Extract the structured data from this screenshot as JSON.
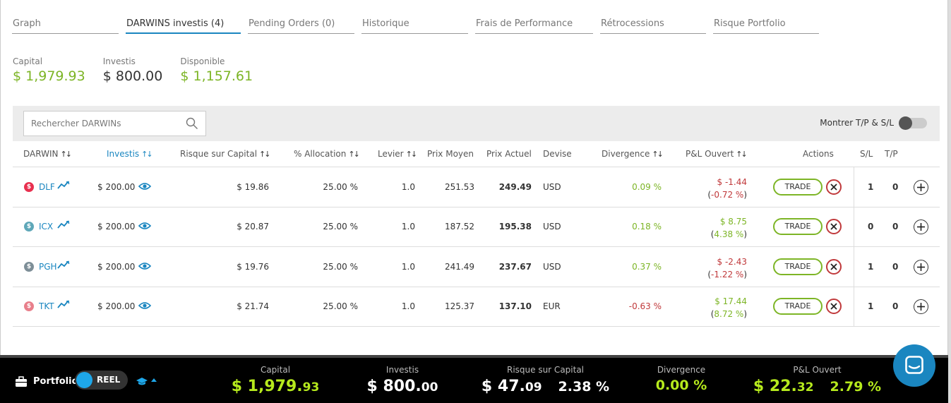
{
  "tabs": [
    {
      "label": "Graph",
      "active": false
    },
    {
      "label": "DARWINS investis (4)",
      "active": true
    },
    {
      "label": "Pending Orders (0)",
      "active": false
    },
    {
      "label": "Historique",
      "active": false
    },
    {
      "label": "Frais de Performance",
      "active": false
    },
    {
      "label": "Rétrocessions",
      "active": false
    },
    {
      "label": "Risque Portfolio",
      "active": false
    }
  ],
  "stats": {
    "capital": {
      "label": "Capital",
      "value": "$ 1,979.93"
    },
    "investis": {
      "label": "Investis",
      "value": "$ 800.00"
    },
    "disponible": {
      "label": "Disponible",
      "value": "$ 1,157.61"
    }
  },
  "search": {
    "placeholder": "Rechercher DARWINs"
  },
  "toggle": {
    "label": "Montrer T/P & S/L",
    "on": false
  },
  "columns": {
    "darwin": "DARWIN",
    "investis": "Investis",
    "risque": "Risque sur Capital",
    "allocation": "% Allocation",
    "levier": "Levier",
    "prix_moyen": "Prix Moyen",
    "prix_actuel": "Prix Actuel",
    "devise": "Devise",
    "divergence": "Divergence",
    "pnl": "P&L Ouvert",
    "actions": "Actions",
    "sl": "S/L",
    "tp": "T/P",
    "sort_glyph": "↑↓"
  },
  "rows": [
    {
      "symbol": "DLF",
      "coin_color": "#e8304f",
      "investis": "$ 200.00",
      "risque": "$ 19.86",
      "allocation": "25.00 %",
      "levier": "1.0",
      "prix_moyen": "251.53",
      "prix_actuel": "249.49",
      "devise": "USD",
      "divergence": "0.09 %",
      "divergence_positive": true,
      "pnl": "$ -1.44",
      "pnl_pct": "(-0.72 %)",
      "pnl_positive": false,
      "trade": "TRADE",
      "sl": "1",
      "tp": "0"
    },
    {
      "symbol": "ICX",
      "coin_color": "#5ea7b8",
      "investis": "$ 200.00",
      "risque": "$ 20.87",
      "allocation": "25.00 %",
      "levier": "1.0",
      "prix_moyen": "187.52",
      "prix_actuel": "195.38",
      "devise": "USD",
      "divergence": "0.18 %",
      "divergence_positive": true,
      "pnl": "$ 8.75",
      "pnl_pct": "(4.38 %)",
      "pnl_positive": true,
      "trade": "TRADE",
      "sl": "0",
      "tp": "0"
    },
    {
      "symbol": "PGH",
      "coin_color": "#7d8e97",
      "investis": "$ 200.00",
      "risque": "$ 19.76",
      "allocation": "25.00 %",
      "levier": "1.0",
      "prix_moyen": "241.49",
      "prix_actuel": "237.67",
      "devise": "USD",
      "divergence": "0.37 %",
      "divergence_positive": true,
      "pnl": "$ -2.43",
      "pnl_pct": "(-1.22 %)",
      "pnl_positive": false,
      "trade": "TRADE",
      "sl": "1",
      "tp": "0"
    },
    {
      "symbol": "TKT",
      "coin_color": "#e87f8b",
      "investis": "$ 200.00",
      "risque": "$ 21.74",
      "allocation": "25.00 %",
      "levier": "1.0",
      "prix_moyen": "125.37",
      "prix_actuel": "137.10",
      "devise": "EUR",
      "divergence": "-0.63 %",
      "divergence_positive": false,
      "pnl": "$ 17.44",
      "pnl_pct": "(8.72 %)",
      "pnl_positive": true,
      "trade": "TRADE",
      "sl": "1",
      "tp": "0"
    }
  ],
  "footer": {
    "portfolio_label": "Portfolio",
    "mode_label": "REEL",
    "capital": {
      "label": "Capital",
      "main": "$ 1,979.",
      "cents": "93"
    },
    "investis": {
      "label": "Investis",
      "main": "$ 800.",
      "cents": "00"
    },
    "risque": {
      "label": "Risque sur Capital",
      "main": "$ 47.",
      "cents": "09",
      "pct": "2.38 %"
    },
    "divergence": {
      "label": "Divergence",
      "value": "0.00 %"
    },
    "pnl": {
      "label": "P&L Ouvert",
      "main": "$ 22.",
      "cents": "32",
      "pct": "2.79 %"
    }
  },
  "colors": {
    "accent": "#1a86c0",
    "positive": "#7db526",
    "negative": "#c0393b",
    "footer_positive": "#b6ea1d"
  },
  "icons": {
    "search": "search-icon",
    "trend": "trend-chart-icon",
    "eye": "eye-icon",
    "close": "close-circle-icon",
    "plus": "plus-circle-icon",
    "briefcase": "briefcase-icon",
    "mortarboard": "mortarboard-icon",
    "chat": "chat-icon"
  }
}
